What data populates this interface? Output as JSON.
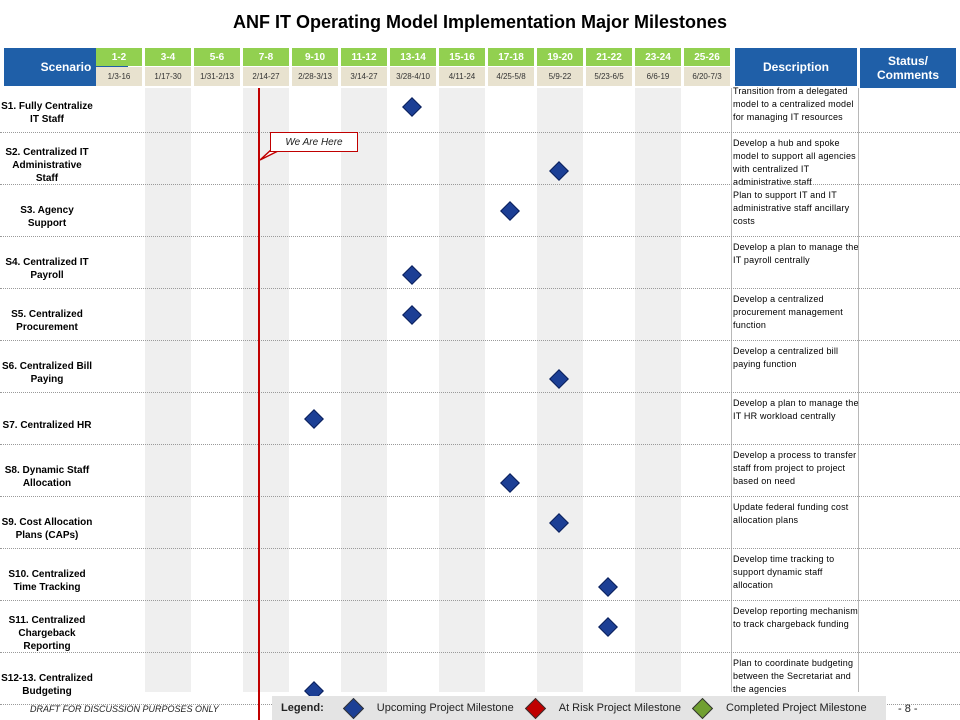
{
  "title": "ANF IT Operating Model Implementation Major Milestones",
  "headers": {
    "scenario": "Scenario",
    "description": "Description",
    "status": "Status/ Comments"
  },
  "periods": [
    "1-2",
    "3-4",
    "5-6",
    "7-8",
    "9-10",
    "11-12",
    "13-14",
    "15-16",
    "17-18",
    "19-20",
    "21-22",
    "23-24",
    "25-26"
  ],
  "dates": [
    "1/3-16",
    "1/17-30",
    "1/31-2/13",
    "2/14-27",
    "2/28-3/13",
    "3/14-27",
    "3/28-4/10",
    "4/11-24",
    "4/25-5/8",
    "5/9-22",
    "5/23-6/5",
    "6/6-19",
    "6/20-7/3"
  ],
  "rows": [
    {
      "scenario": "S1. Fully Centralize IT Staff",
      "description": "Transition from a delegated model to a centralized model for managing IT resources",
      "milestone_col": 6
    },
    {
      "scenario": "S2. Centralized IT Administrative Staff",
      "description": "Develop a hub and spoke model to support all agencies with centralized IT administrative staff",
      "milestone_col": 9
    },
    {
      "scenario": "S3. Agency Support",
      "description": "Plan to support IT and IT administrative staff ancillary costs",
      "milestone_col": 8
    },
    {
      "scenario": "S4. Centralized IT Payroll",
      "description": "Develop a plan to manage the IT payroll centrally",
      "milestone_col": 6
    },
    {
      "scenario": "S5. Centralized Procurement",
      "description": "Develop a centralized procurement management function",
      "milestone_col": 6
    },
    {
      "scenario": "S6. Centralized Bill Paying",
      "description": "Develop a centralized bill paying function",
      "milestone_col": 9
    },
    {
      "scenario": "S7. Centralized HR",
      "description": "Develop a plan to manage the IT HR workload centrally",
      "milestone_col": 4
    },
    {
      "scenario": "S8. Dynamic Staff Allocation",
      "description": "Develop a process to transfer staff from project to project based on need",
      "milestone_col": 8
    },
    {
      "scenario": "S9. Cost Allocation Plans (CAPs)",
      "description": "Update federal funding cost allocation plans",
      "milestone_col": 9
    },
    {
      "scenario": "S10. Centralized Time Tracking",
      "description": "Develop time tracking to support dynamic staff allocation",
      "milestone_col": 10
    },
    {
      "scenario": "S11. Centralized Chargeback Reporting",
      "description": "Develop reporting mechanism to track chargeback funding",
      "milestone_col": 10
    },
    {
      "scenario": "S12-13. Centralized Budgeting",
      "description": "Plan to coordinate budgeting between the Secretariat and the agencies",
      "milestone_col": 4
    }
  ],
  "we_are_here": "We Are Here",
  "footer": {
    "draft": "DRAFT FOR DISCUSSION PURPOSES ONLY",
    "page": "- 8 -"
  },
  "legend": {
    "label": "Legend:",
    "items": [
      {
        "text": "Upcoming Project Milestone",
        "color": "#1c3f95"
      },
      {
        "text": "At Risk Project Milestone",
        "color": "#c00000"
      },
      {
        "text": "Completed Project Milestone",
        "color": "#70a030"
      }
    ]
  },
  "colors": {
    "header_blue": "#1f5fa8",
    "period_green": "#92d050",
    "date_tan": "#e8e2cf",
    "marker_red": "#c00000"
  }
}
